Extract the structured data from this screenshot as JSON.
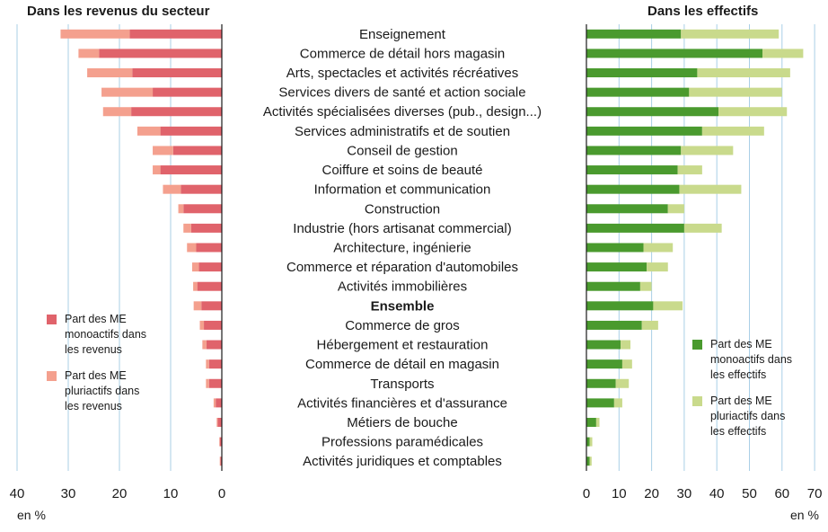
{
  "chart_data": [
    {
      "type": "bar",
      "orientation": "horizontal",
      "stacked": true,
      "x_direction": "reversed",
      "title": "Dans les revenus du secteur",
      "unit_label": "en %",
      "xlim": [
        0,
        40
      ],
      "x_ticks": [
        40,
        30,
        20,
        10,
        0
      ],
      "grid": true,
      "legend_position": "left",
      "categories": [
        "Enseignement",
        "Commerce de détail hors magasin",
        "Arts, spectacles et activités récréatives",
        "Services divers de santé et action sociale",
        "Activités spécialisées diverses (pub., design...)",
        "Services administratifs et de soutien",
        "Conseil de gestion",
        "Coiffure et soins de beauté",
        "Information et communication",
        "Construction",
        "Industrie (hors artisanat commercial)",
        "Architecture, ingénierie",
        "Commerce et réparation d'automobiles",
        "Activités immobilières",
        "Ensemble",
        "Commerce de gros",
        "Hébergement et restauration",
        "Commerce de détail en magasin",
        "Transports",
        "Activités financières et d'assurance",
        "Métiers de bouche",
        "Professions paramédicales",
        "Activités juridiques et comptables"
      ],
      "series": [
        {
          "name": "Part des ME monoactifs dans les revenus",
          "color": "#e0636b",
          "values": [
            18.0,
            24.0,
            17.5,
            13.5,
            17.7,
            12.0,
            9.5,
            12.0,
            8.0,
            7.5,
            6.0,
            5.0,
            4.5,
            4.8,
            4.0,
            3.5,
            3.0,
            2.5,
            2.5,
            1.2,
            0.8,
            0.4,
            0.3
          ]
        },
        {
          "name": "Part des ME pluriactifs dans les revenus",
          "color": "#f4a08e",
          "values": [
            13.5,
            4.0,
            8.8,
            10.0,
            5.5,
            4.5,
            4.0,
            1.5,
            3.5,
            1.0,
            1.5,
            1.8,
            1.3,
            0.8,
            1.5,
            0.8,
            0.8,
            0.6,
            0.6,
            0.4,
            0.2,
            0.1,
            0.1
          ]
        }
      ]
    },
    {
      "type": "bar",
      "orientation": "horizontal",
      "stacked": true,
      "title": "Dans les effectifs",
      "unit_label": "en %",
      "xlim": [
        0,
        70
      ],
      "x_ticks": [
        0,
        10,
        20,
        30,
        40,
        50,
        60,
        70
      ],
      "grid": true,
      "legend_position": "right",
      "categories_ref": "same as left panel",
      "series": [
        {
          "name": "Part des ME monoactifs dans les effectifs",
          "color": "#4a9a2e",
          "values": [
            29.0,
            54.0,
            34.0,
            31.5,
            40.5,
            35.5,
            29.0,
            28.0,
            28.5,
            25.0,
            30.0,
            17.5,
            18.5,
            16.5,
            20.5,
            17.0,
            10.5,
            11.0,
            9.0,
            8.5,
            3.0,
            1.0,
            1.0
          ]
        },
        {
          "name": "Part des ME pluriactifs dans les effectifs",
          "color": "#c9da8c",
          "values": [
            30.0,
            12.5,
            28.5,
            28.5,
            21.0,
            19.0,
            16.0,
            7.5,
            19.0,
            5.0,
            11.5,
            9.0,
            6.5,
            3.5,
            9.0,
            5.0,
            3.0,
            3.0,
            4.0,
            2.5,
            1.0,
            0.8,
            0.6
          ]
        }
      ]
    }
  ],
  "labels": {
    "left_title": "Dans les revenus du secteur",
    "right_title": "Dans les effectifs",
    "unit_left": "en %",
    "unit_right": "en %",
    "left_legend": [
      {
        "lines": [
          "Part des ME",
          "monoactifs dans",
          "les revenus"
        ],
        "color": "#e0636b"
      },
      {
        "lines": [
          "Part des ME",
          "pluriactifs dans",
          "les revenus"
        ],
        "color": "#f4a08e"
      }
    ],
    "right_legend": [
      {
        "lines": [
          "Part des ME",
          "monoactifs dans",
          "les effectifs"
        ],
        "color": "#4a9a2e"
      },
      {
        "lines": [
          "Part des ME",
          "pluriactifs dans",
          "les effectifs"
        ],
        "color": "#c9da8c"
      }
    ],
    "bold_category": "Ensemble"
  },
  "colors": {
    "grid": "#a9cfe6",
    "axis": "#1a1a1a",
    "text": "#1a1a1a"
  }
}
